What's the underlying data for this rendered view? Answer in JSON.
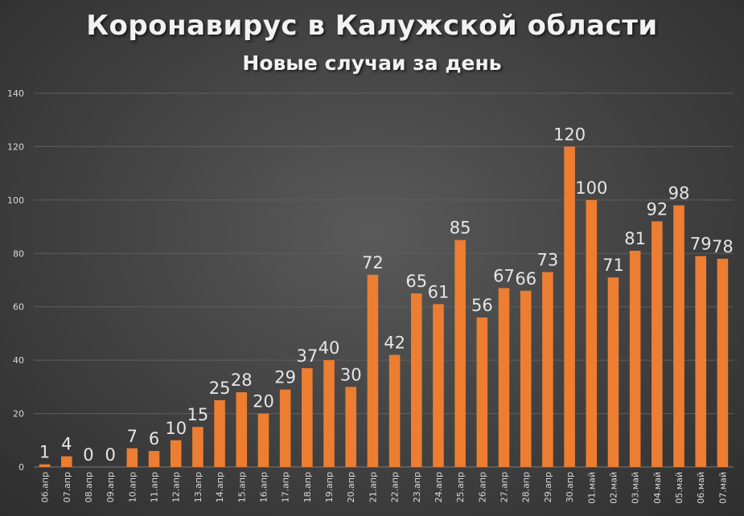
{
  "colors": {
    "bar": "#ed7d31",
    "text": "#d9d9d9"
  },
  "chart_data": {
    "type": "bar",
    "title": "Коронавирус в Калужской области",
    "subtitle": "Новые случаи за день",
    "xlabel": "",
    "ylabel": "",
    "ylim": [
      0,
      140
    ],
    "yticks": [
      0,
      20,
      40,
      60,
      80,
      100,
      120,
      140
    ],
    "grid": true,
    "categories": [
      "06.апр",
      "07.апр",
      "08.апр",
      "09.апр",
      "10.апр",
      "11.апр",
      "12.апр",
      "13.апр",
      "14.апр",
      "15.апр",
      "16.апр",
      "17.апр",
      "18.апр",
      "19.апр",
      "20.апр",
      "21.апр",
      "22.апр",
      "23.апр",
      "24.апр",
      "25.апр",
      "26.апр",
      "27.апр",
      "28.апр",
      "29.апр",
      "30.апр",
      "01.май",
      "02.май",
      "03.май",
      "04.май",
      "05.май",
      "06.май",
      "07.май"
    ],
    "values": [
      1,
      4,
      0,
      0,
      7,
      6,
      10,
      15,
      25,
      28,
      20,
      29,
      37,
      40,
      30,
      72,
      42,
      65,
      61,
      85,
      56,
      67,
      66,
      73,
      120,
      100,
      71,
      81,
      92,
      98,
      79,
      78
    ]
  }
}
